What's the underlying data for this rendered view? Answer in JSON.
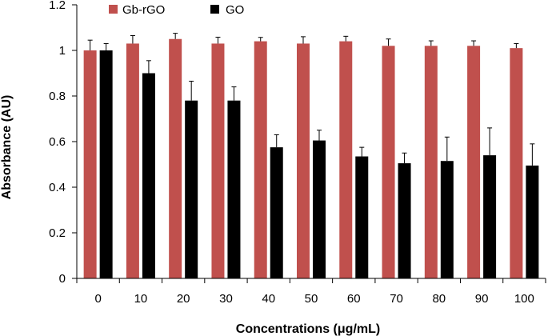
{
  "chart_data": {
    "type": "bar",
    "title": "",
    "xlabel": "Concentrations (μg/mL)",
    "ylabel": "Absorbance (AU)",
    "ylim": [
      0,
      1.2
    ],
    "yticks": [
      "0",
      "0.2",
      "0.4",
      "0.6",
      "0.8",
      "1",
      "1.2"
    ],
    "categories": [
      "0",
      "10",
      "20",
      "30",
      "40",
      "50",
      "60",
      "70",
      "80",
      "90",
      "100"
    ],
    "legend_position": "top-left",
    "series": [
      {
        "name": "Gb-rGO",
        "color": "#c0504d",
        "values": [
          1.0,
          1.03,
          1.05,
          1.03,
          1.04,
          1.03,
          1.04,
          1.02,
          1.02,
          1.02,
          1.01
        ],
        "errors": [
          0.045,
          0.035,
          0.025,
          0.028,
          0.017,
          0.03,
          0.022,
          0.03,
          0.022,
          0.022,
          0.02
        ]
      },
      {
        "name": "GO",
        "color": "#000000",
        "values": [
          1.0,
          0.9,
          0.78,
          0.78,
          0.575,
          0.605,
          0.535,
          0.505,
          0.515,
          0.54,
          0.495
        ],
        "errors": [
          0.03,
          0.055,
          0.085,
          0.06,
          0.055,
          0.045,
          0.04,
          0.045,
          0.105,
          0.12,
          0.095
        ]
      }
    ]
  }
}
